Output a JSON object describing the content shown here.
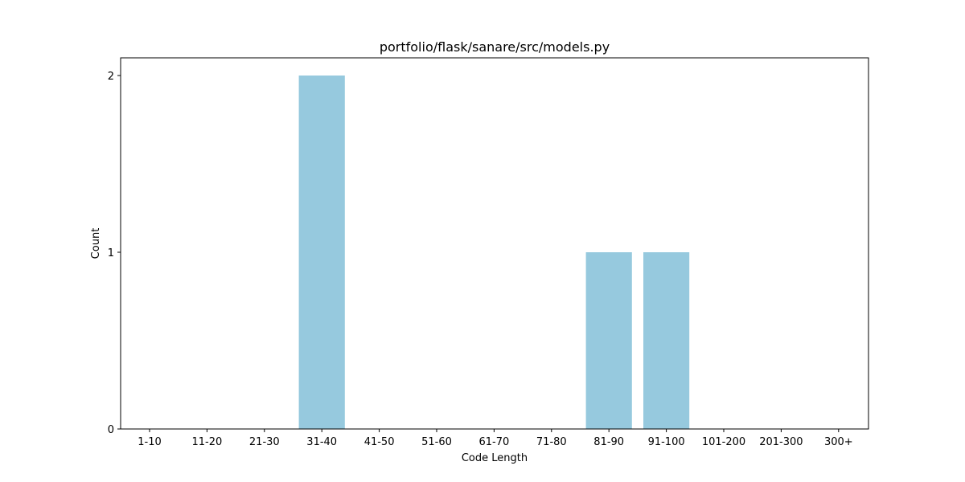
{
  "chart_data": {
    "type": "bar",
    "title": "portfolio/flask/sanare/src/models.py",
    "xlabel": "Code Length",
    "ylabel": "Count",
    "categories": [
      "1-10",
      "11-20",
      "21-30",
      "31-40",
      "41-50",
      "51-60",
      "61-70",
      "71-80",
      "81-90",
      "91-100",
      "101-200",
      "201-300",
      "300+"
    ],
    "values": [
      0,
      0,
      0,
      2,
      0,
      0,
      0,
      0,
      1,
      1,
      0,
      0,
      0
    ],
    "ylim": [
      0,
      2.1
    ],
    "yticks": [
      0,
      1,
      2
    ],
    "grid": false,
    "bar_color": "#96c9de"
  }
}
